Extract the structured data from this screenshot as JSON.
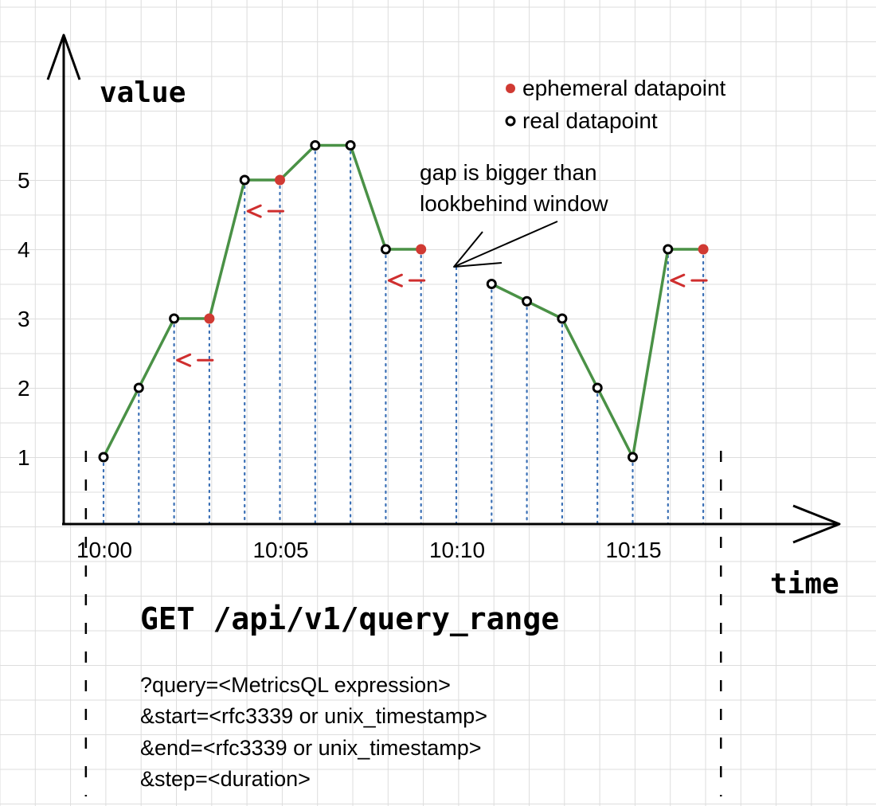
{
  "colors": {
    "grid": "#dddddd",
    "axis": "#000000",
    "line": "#4a9146",
    "ephemeral": "#d03a33",
    "real_fill": "#ffffff",
    "real_stroke": "#000000",
    "dotted": "#3a6fb5",
    "arrow_red": "#cf2e2e"
  },
  "axis": {
    "y_label": "value",
    "x_label": "time",
    "y_ticks": [
      "1",
      "2",
      "3",
      "4",
      "5"
    ],
    "x_ticks": [
      "10:00",
      "10:05",
      "10:10",
      "10:15"
    ]
  },
  "legend": {
    "ephemeral_label": "ephemeral datapoint",
    "real_label": "real datapoint"
  },
  "annotation": {
    "line1": "gap is bigger than",
    "line2": "lookbehind window"
  },
  "request": {
    "title": "GET /api/v1/query_range",
    "params": [
      "?query=<MetricsQL expression>",
      "&start=<rfc3339 or unix_timestamp>",
      "&end=<rfc3339 or unix_timestamp>",
      "&step=<duration>"
    ]
  },
  "chart_data": {
    "type": "line",
    "title": "",
    "xlabel": "time",
    "ylabel": "value",
    "ylim": [
      0,
      6
    ],
    "xlim": [
      -0.5,
      18.5
    ],
    "x_tick_labels": [
      {
        "x": 0,
        "label": "10:00"
      },
      {
        "x": 5,
        "label": "10:05"
      },
      {
        "x": 10,
        "label": "10:10"
      },
      {
        "x": 15,
        "label": "10:15"
      }
    ],
    "query_range": {
      "start": -0.5,
      "end": 17.5
    },
    "segments": [
      [
        {
          "x": 0,
          "y": 1,
          "kind": "real"
        },
        {
          "x": 1,
          "y": 2,
          "kind": "real"
        },
        {
          "x": 2,
          "y": 3,
          "kind": "real"
        },
        {
          "x": 3,
          "y": 3,
          "kind": "ephemeral"
        },
        {
          "x": 4,
          "y": 5,
          "kind": "real"
        },
        {
          "x": 5,
          "y": 5,
          "kind": "ephemeral"
        },
        {
          "x": 6,
          "y": 5.5,
          "kind": "real"
        },
        {
          "x": 7,
          "y": 5.5,
          "kind": "real"
        },
        {
          "x": 8,
          "y": 4,
          "kind": "real"
        },
        {
          "x": 9,
          "y": 4,
          "kind": "ephemeral"
        }
      ],
      [
        {
          "x": 11,
          "y": 3.5,
          "kind": "real"
        },
        {
          "x": 12,
          "y": 3.25,
          "kind": "real"
        },
        {
          "x": 13,
          "y": 3,
          "kind": "real"
        },
        {
          "x": 14,
          "y": 2,
          "kind": "real"
        },
        {
          "x": 15,
          "y": 1,
          "kind": "real"
        },
        {
          "x": 16,
          "y": 4,
          "kind": "real"
        },
        {
          "x": 17,
          "y": 4,
          "kind": "ephemeral"
        }
      ]
    ],
    "gap_x": 10,
    "lookback_arrows": [
      {
        "from_x": 3,
        "to_x": 2,
        "y": 2.4
      },
      {
        "from_x": 5,
        "to_x": 4,
        "y": 4.55
      },
      {
        "from_x": 9,
        "to_x": 8,
        "y": 3.55
      },
      {
        "from_x": 17,
        "to_x": 16,
        "y": 3.55
      }
    ]
  }
}
